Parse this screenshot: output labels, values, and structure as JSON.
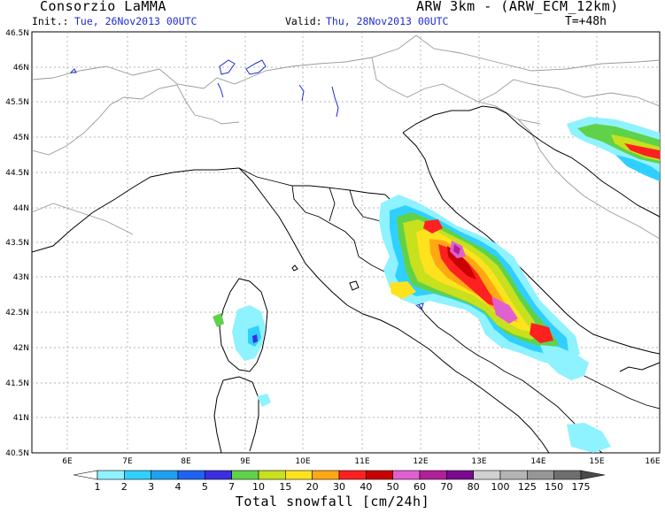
{
  "header": {
    "org": "Consorzio LaMMA",
    "model": "ARW 3km - (ARW_ECM_12km)",
    "init_label": "Init.:",
    "init_value": "Tue, 26Nov2013 00UTC",
    "valid_label": "Valid:",
    "valid_value": "Thu, 28Nov2013 00UTC",
    "lead_time": "T=+48h"
  },
  "map": {
    "lat_labels": [
      "46.5N",
      "46N",
      "45.5N",
      "45N",
      "44.5N",
      "44N",
      "43.5N",
      "43N",
      "42.5N",
      "42N",
      "41.5N",
      "41N",
      "40.5N"
    ],
    "lon_labels": [
      "6E",
      "7E",
      "8E",
      "9E",
      "10E",
      "11E",
      "12E",
      "13E",
      "14E",
      "15E",
      "16E"
    ],
    "grid": true
  },
  "colorbar": {
    "title": "Total snowfall [cm/24h]",
    "levels": [
      "1",
      "2",
      "3",
      "4",
      "5",
      "7",
      "10",
      "15",
      "20",
      "30",
      "40",
      "50",
      "60",
      "70",
      "80",
      "100",
      "125",
      "150",
      "175"
    ],
    "colors": [
      "#8ef2ff",
      "#2fd0ff",
      "#1fa0f0",
      "#1f64f0",
      "#3b2ee0",
      "#5fd24a",
      "#c8e01e",
      "#ffe21e",
      "#ffa814",
      "#ff2020",
      "#c80000",
      "#e060d0",
      "#b0209a",
      "#7a0a90",
      "#d0d0d0",
      "#b4b4b4",
      "#969696",
      "#6e6e6e",
      "#4a4a4a",
      "#2a2a2a"
    ]
  }
}
